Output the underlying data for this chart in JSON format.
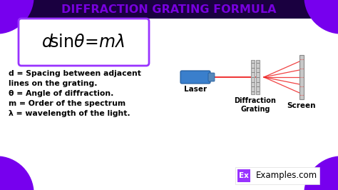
{
  "title": "DIFFRACTION GRATING FORMULA",
  "title_color": "#7700DD",
  "bg_color": "#FFFFFF",
  "corner_color": "#7700EE",
  "formula_box_color": "#9933FF",
  "laser_color": "#3A7FCC",
  "beam_color": "#EE2222",
  "label_laser": "Laser",
  "label_grating": "Diffraction\nGrating",
  "label_screen": "Screen",
  "watermark_bg": "#9933FF",
  "watermark_text": "Ex",
  "watermark_site": "Examples.com",
  "definitions": [
    "d = Spacing between adjacent",
    "lines on the grating.",
    "θ = Angle of diffraction.",
    "m = Order of the spectrum",
    "λ = wavelength of the light."
  ]
}
